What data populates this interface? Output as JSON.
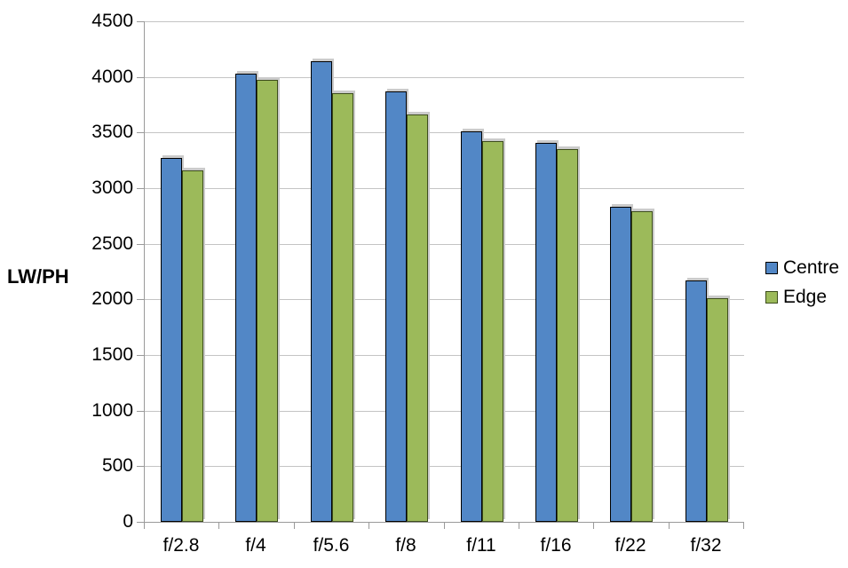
{
  "chart_data": {
    "type": "bar",
    "title": "",
    "categories": [
      "f/2.8",
      "f/4",
      "f/5.6",
      "f/8",
      "f/11",
      "f/16",
      "f/22",
      "f/32"
    ],
    "series": [
      {
        "name": "Centre",
        "color": "#5287c6",
        "border_color": "#000000",
        "values": [
          3270,
          4030,
          4140,
          3870,
          3510,
          3410,
          2830,
          2170
        ]
      },
      {
        "name": "Edge",
        "color": "#9cba5a",
        "border_color": "#3d4d1c",
        "values": [
          3160,
          3970,
          3850,
          3660,
          3420,
          3350,
          2790,
          2010
        ]
      }
    ],
    "xlabel": "",
    "ylabel": "LW/PH",
    "ylim": [
      0,
      4500
    ],
    "ytick_step": 500,
    "ytick_labels": [
      "0",
      "500",
      "1000",
      "1500",
      "2000",
      "2500",
      "3000",
      "3500",
      "4000",
      "4500"
    ],
    "grid": true,
    "legend_position": "right"
  },
  "palette": {
    "gridline": "#c4c4c4",
    "axis": "#9a9a9a",
    "bar_shadow": "#cbcbcb",
    "text": "#000000",
    "background": "#ffffff"
  }
}
